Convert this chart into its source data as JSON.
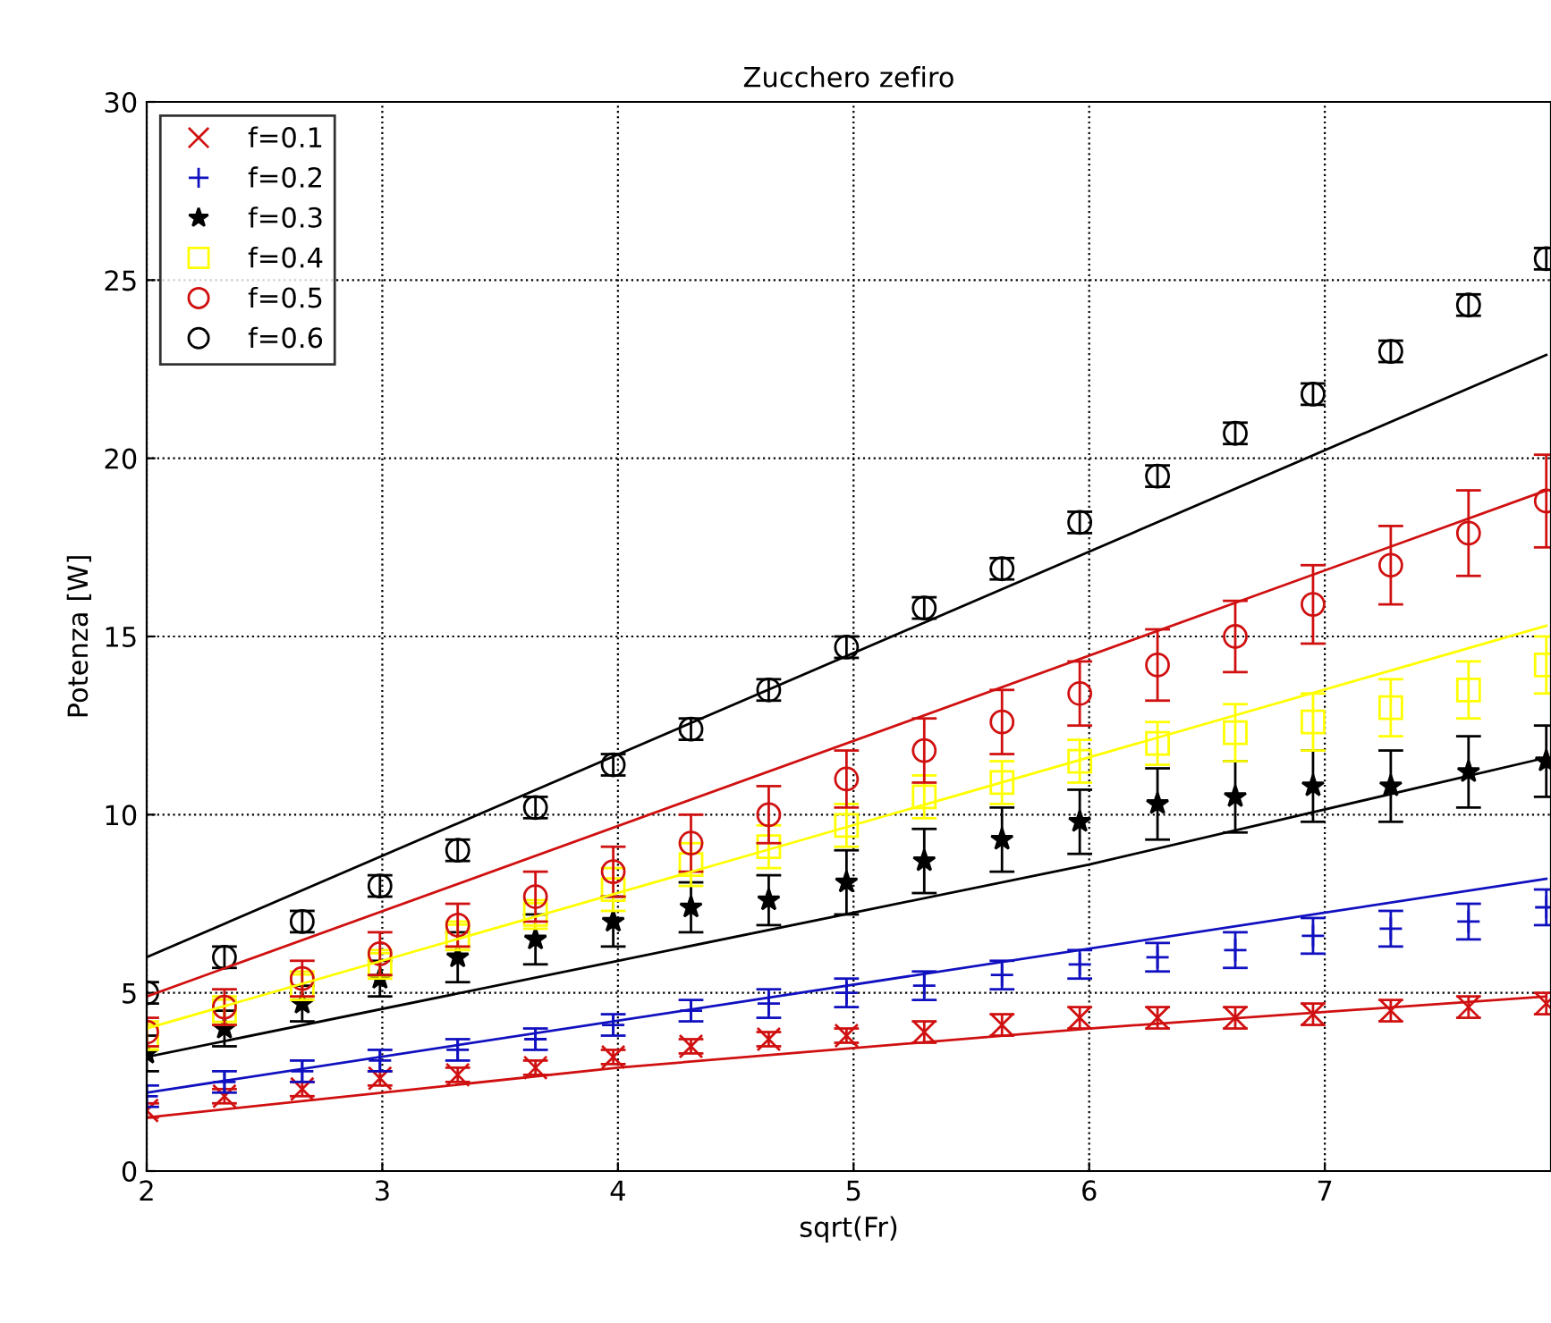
{
  "chart_data": {
    "type": "scatter",
    "title": "Zucchero zefiro",
    "xlabel": "sqrt(Fr)",
    "ylabel": "Potenza [W]",
    "x": [
      2,
      2.33,
      2.66,
      2.99,
      3.32,
      3.65,
      3.98,
      4.31,
      4.64,
      4.97,
      5.3,
      5.63,
      5.96,
      6.29,
      6.62,
      6.95,
      7.28,
      7.61,
      7.94
    ],
    "xlim": [
      2,
      7.96
    ],
    "ylim": [
      0,
      30
    ],
    "xticks": [
      2,
      3,
      4,
      5,
      6,
      7
    ],
    "yticks": [
      0,
      5,
      10,
      15,
      20,
      25,
      30
    ],
    "grid": true,
    "legend": "top left",
    "series": [
      {
        "name": "f=0.1",
        "color": "#d01010",
        "marker": "cross",
        "values": [
          1.7,
          2.1,
          2.3,
          2.6,
          2.7,
          2.9,
          3.2,
          3.5,
          3.7,
          3.8,
          3.9,
          4.1,
          4.3,
          4.3,
          4.3,
          4.4,
          4.5,
          4.6,
          4.7
        ],
        "errors": [
          0.2,
          0.2,
          0.2,
          0.2,
          0.2,
          0.2,
          0.2,
          0.2,
          0.2,
          0.2,
          0.3,
          0.3,
          0.3,
          0.3,
          0.3,
          0.3,
          0.3,
          0.3,
          0.3
        ]
      },
      {
        "name": "f=0.2",
        "color": "#1010c0",
        "marker": "plus",
        "values": [
          2.1,
          2.5,
          2.8,
          3.1,
          3.4,
          3.7,
          4.1,
          4.5,
          4.7,
          5.0,
          5.2,
          5.5,
          5.8,
          6.0,
          6.2,
          6.6,
          6.8,
          7.0,
          7.4
        ],
        "errors": [
          0.3,
          0.3,
          0.3,
          0.3,
          0.3,
          0.3,
          0.3,
          0.3,
          0.4,
          0.4,
          0.4,
          0.4,
          0.4,
          0.4,
          0.5,
          0.5,
          0.5,
          0.5,
          0.5
        ]
      },
      {
        "name": "f=0.3",
        "color": "#000000",
        "marker": "star",
        "values": [
          3.3,
          4.0,
          4.7,
          5.4,
          6.0,
          6.5,
          7.0,
          7.4,
          7.6,
          8.1,
          8.7,
          9.3,
          9.8,
          10.3,
          10.5,
          10.8,
          10.8,
          11.2,
          11.5
        ],
        "errors": [
          0.5,
          0.5,
          0.5,
          0.5,
          0.7,
          0.7,
          0.7,
          0.7,
          0.7,
          0.9,
          0.9,
          0.9,
          0.9,
          1.0,
          1.0,
          1.0,
          1.0,
          1.0,
          1.0
        ]
      },
      {
        "name": "f=0.4",
        "color": "#ffff00",
        "marker": "square",
        "values": [
          3.8,
          4.5,
          5.2,
          5.8,
          6.6,
          7.2,
          7.9,
          8.6,
          9.1,
          9.7,
          10.5,
          10.9,
          11.5,
          12.0,
          12.3,
          12.6,
          13.0,
          13.5,
          14.2
        ],
        "errors": [
          0.4,
          0.4,
          0.4,
          0.4,
          0.4,
          0.4,
          0.6,
          0.6,
          0.6,
          0.6,
          0.6,
          0.6,
          0.6,
          0.6,
          0.8,
          0.8,
          0.8,
          0.8,
          0.8
        ]
      },
      {
        "name": "f=0.5",
        "color": "#d01010",
        "marker": "circle",
        "values": [
          3.9,
          4.6,
          5.4,
          6.1,
          6.9,
          7.7,
          8.4,
          9.2,
          10.0,
          11.0,
          11.8,
          12.6,
          13.4,
          14.2,
          15.0,
          15.9,
          17.0,
          17.9,
          18.8
        ],
        "errors": [
          0.4,
          0.5,
          0.5,
          0.6,
          0.6,
          0.7,
          0.7,
          0.8,
          0.8,
          0.8,
          0.9,
          0.9,
          0.9,
          1.0,
          1.0,
          1.1,
          1.1,
          1.2,
          1.3
        ]
      },
      {
        "name": "f=0.6",
        "color": "#000000",
        "marker": "circle",
        "values": [
          5.0,
          6.0,
          7.0,
          8.0,
          9.0,
          10.2,
          11.4,
          12.4,
          13.5,
          14.7,
          15.8,
          16.9,
          18.2,
          19.5,
          20.7,
          21.8,
          23.0,
          24.3,
          25.6
        ],
        "errors": [
          0.3,
          0.3,
          0.3,
          0.3,
          0.3,
          0.3,
          0.3,
          0.3,
          0.3,
          0.3,
          0.3,
          0.3,
          0.3,
          0.3,
          0.3,
          0.3,
          0.3,
          0.3,
          0.3
        ]
      },
      {
        "type": "line",
        "color": "#d01010",
        "x": [
          2,
          4,
          6,
          7.94
        ],
        "values": [
          1.5,
          2.9,
          4.0,
          4.9
        ]
      },
      {
        "type": "line",
        "color": "#1010c0",
        "x": [
          2,
          7.94
        ],
        "values": [
          2.2,
          8.2
        ]
      },
      {
        "type": "line",
        "color": "#000000",
        "x": [
          2,
          4,
          6,
          7.94
        ],
        "values": [
          3.2,
          5.9,
          8.6,
          11.6
        ]
      },
      {
        "type": "line",
        "color": "#ffff00",
        "x": [
          2,
          7.94
        ],
        "values": [
          4.0,
          15.3
        ]
      },
      {
        "type": "line",
        "color": "#d01010",
        "x": [
          2,
          7.94
        ],
        "values": [
          4.9,
          19.1
        ]
      },
      {
        "type": "line",
        "color": "#000000",
        "x": [
          2,
          7.94
        ],
        "values": [
          6.0,
          22.9
        ]
      }
    ]
  }
}
